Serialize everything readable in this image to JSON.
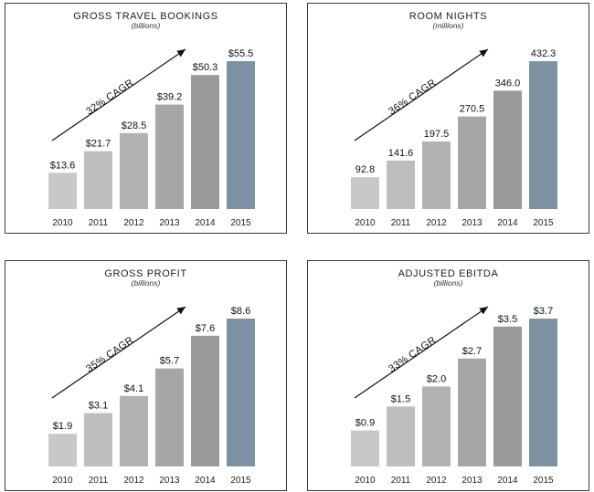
{
  "chart_data": [
    {
      "type": "bar",
      "title": "GROSS TRAVEL BOOKINGS",
      "subtitle": "(billions)",
      "categories": [
        "2010",
        "2011",
        "2012",
        "2013",
        "2014",
        "2015"
      ],
      "values": [
        13.6,
        21.7,
        28.5,
        39.2,
        50.3,
        55.5
      ],
      "value_labels": [
        "$13.6",
        "$21.7",
        "$28.5",
        "$39.2",
        "$50.3",
        "$55.5"
      ],
      "annotation": "32% CAGR",
      "bar_colors": [
        "#c8c8c8",
        "#bebebe",
        "#b2b2b2",
        "#a6a6a6",
        "#999999",
        "#7d93a3"
      ],
      "grid": false
    },
    {
      "type": "bar",
      "title": "ROOM NIGHTS",
      "subtitle": "(millions)",
      "categories": [
        "2010",
        "2011",
        "2012",
        "2013",
        "2014",
        "2015"
      ],
      "values": [
        92.8,
        141.6,
        197.5,
        270.5,
        346.0,
        432.3
      ],
      "value_labels": [
        "92.8",
        "141.6",
        "197.5",
        "270.5",
        "346.0",
        "432.3"
      ],
      "annotation": "36% CAGR",
      "bar_colors": [
        "#c8c8c8",
        "#bebebe",
        "#b2b2b2",
        "#a6a6a6",
        "#999999",
        "#7d93a3"
      ],
      "grid": false
    },
    {
      "type": "bar",
      "title": "GROSS PROFIT",
      "subtitle": "(billions)",
      "categories": [
        "2010",
        "2011",
        "2012",
        "2013",
        "2014",
        "2015"
      ],
      "values": [
        1.9,
        3.1,
        4.1,
        5.7,
        7.6,
        8.6
      ],
      "value_labels": [
        "$1.9",
        "$3.1",
        "$4.1",
        "$5.7",
        "$7.6",
        "$8.6"
      ],
      "annotation": "35% CAGR",
      "bar_colors": [
        "#c8c8c8",
        "#bebebe",
        "#b2b2b2",
        "#a6a6a6",
        "#999999",
        "#7d93a3"
      ],
      "grid": false
    },
    {
      "type": "bar",
      "title": "ADJUSTED EBITDA",
      "subtitle": "(billions)",
      "categories": [
        "2010",
        "2011",
        "2012",
        "2013",
        "2014",
        "2015"
      ],
      "values": [
        0.9,
        1.5,
        2.0,
        2.7,
        3.5,
        3.7
      ],
      "value_labels": [
        "$0.9",
        "$1.5",
        "$2.0",
        "$2.7",
        "$3.5",
        "$3.7"
      ],
      "annotation": "33% CAGR",
      "bar_colors": [
        "#c8c8c8",
        "#bebebe",
        "#b2b2b2",
        "#a6a6a6",
        "#999999",
        "#7d93a3"
      ],
      "grid": false
    }
  ]
}
